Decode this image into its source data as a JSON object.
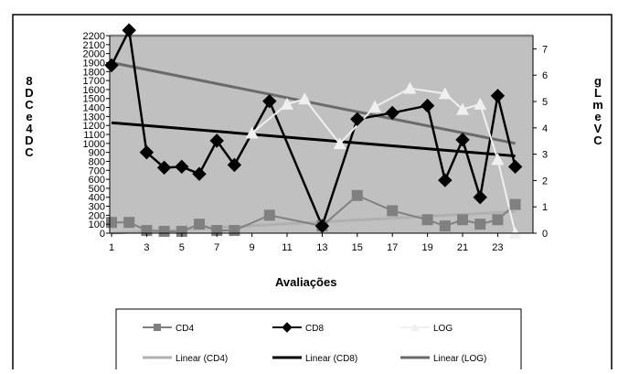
{
  "chart_data": {
    "type": "line",
    "xlabel": "Avaliações",
    "y_left_label": "8 DC e 4 DC",
    "y_right_label": "gL me VC",
    "x_tick_labels": [
      "1",
      "3",
      "5",
      "7",
      "9",
      "11",
      "13",
      "15",
      "17",
      "19",
      "21",
      "23"
    ],
    "y_left_ticks": [
      "0",
      "100",
      "200",
      "300",
      "400",
      "500",
      "600",
      "700",
      "800",
      "900",
      "1000",
      "1100",
      "1200",
      "1300",
      "1400",
      "1500",
      "1600",
      "1700",
      "1800",
      "1900",
      "2000",
      "2100",
      "2200"
    ],
    "y_right_ticks": [
      "0",
      "1",
      "2",
      "3",
      "4",
      "5",
      "6",
      "7"
    ],
    "y_left_range": [
      0,
      2200
    ],
    "y_right_range": [
      0,
      7.5
    ],
    "x_range": [
      1,
      24
    ],
    "grid": false,
    "legend_position": "bottom",
    "plot_background": "#c0c0c0",
    "series": [
      {
        "name": "CD4",
        "axis": "left",
        "marker": "square",
        "color": "#808080",
        "line": true,
        "x": [
          1,
          2,
          3,
          4,
          5,
          6,
          7,
          8,
          10,
          13,
          15,
          17,
          19,
          20,
          21,
          22,
          23,
          24
        ],
        "y": [
          120,
          120,
          30,
          20,
          20,
          100,
          30,
          30,
          200,
          80,
          420,
          250,
          150,
          80,
          150,
          100,
          150,
          320
        ]
      },
      {
        "name": "CD8",
        "axis": "left",
        "marker": "diamond",
        "color": "#000000",
        "line": true,
        "x": [
          1,
          2,
          3,
          4,
          5,
          6,
          7,
          8,
          10,
          13,
          15,
          17,
          19,
          20,
          21,
          22,
          23,
          24
        ],
        "y": [
          1870,
          2260,
          900,
          730,
          740,
          660,
          1030,
          760,
          1470,
          80,
          1270,
          1340,
          1420,
          590,
          1040,
          400,
          1530,
          740
        ]
      },
      {
        "name": "LOG",
        "axis": "right",
        "marker": "triangle",
        "color": "#f0f0f0",
        "line": true,
        "x": [
          9,
          11,
          12,
          14,
          16,
          18,
          20,
          21,
          22,
          23,
          24
        ],
        "y": [
          3.8,
          4.9,
          5.1,
          3.4,
          4.8,
          5.5,
          5.3,
          4.7,
          4.9,
          2.8,
          0
        ]
      },
      {
        "name": "Linear (CD4)",
        "axis": "left",
        "color": "#b0b0b0",
        "trend": true,
        "x": [
          1,
          24
        ],
        "y": [
          0,
          240
        ]
      },
      {
        "name": "Linear (CD8)",
        "axis": "left",
        "color": "#000000",
        "trend": true,
        "x": [
          1,
          24
        ],
        "y": [
          1230,
          860
        ]
      },
      {
        "name": "Linear (LOG)",
        "axis": "left",
        "color": "#6a6a6a",
        "trend": true,
        "x": [
          1,
          24
        ],
        "y": [
          1900,
          1000
        ]
      }
    ]
  }
}
